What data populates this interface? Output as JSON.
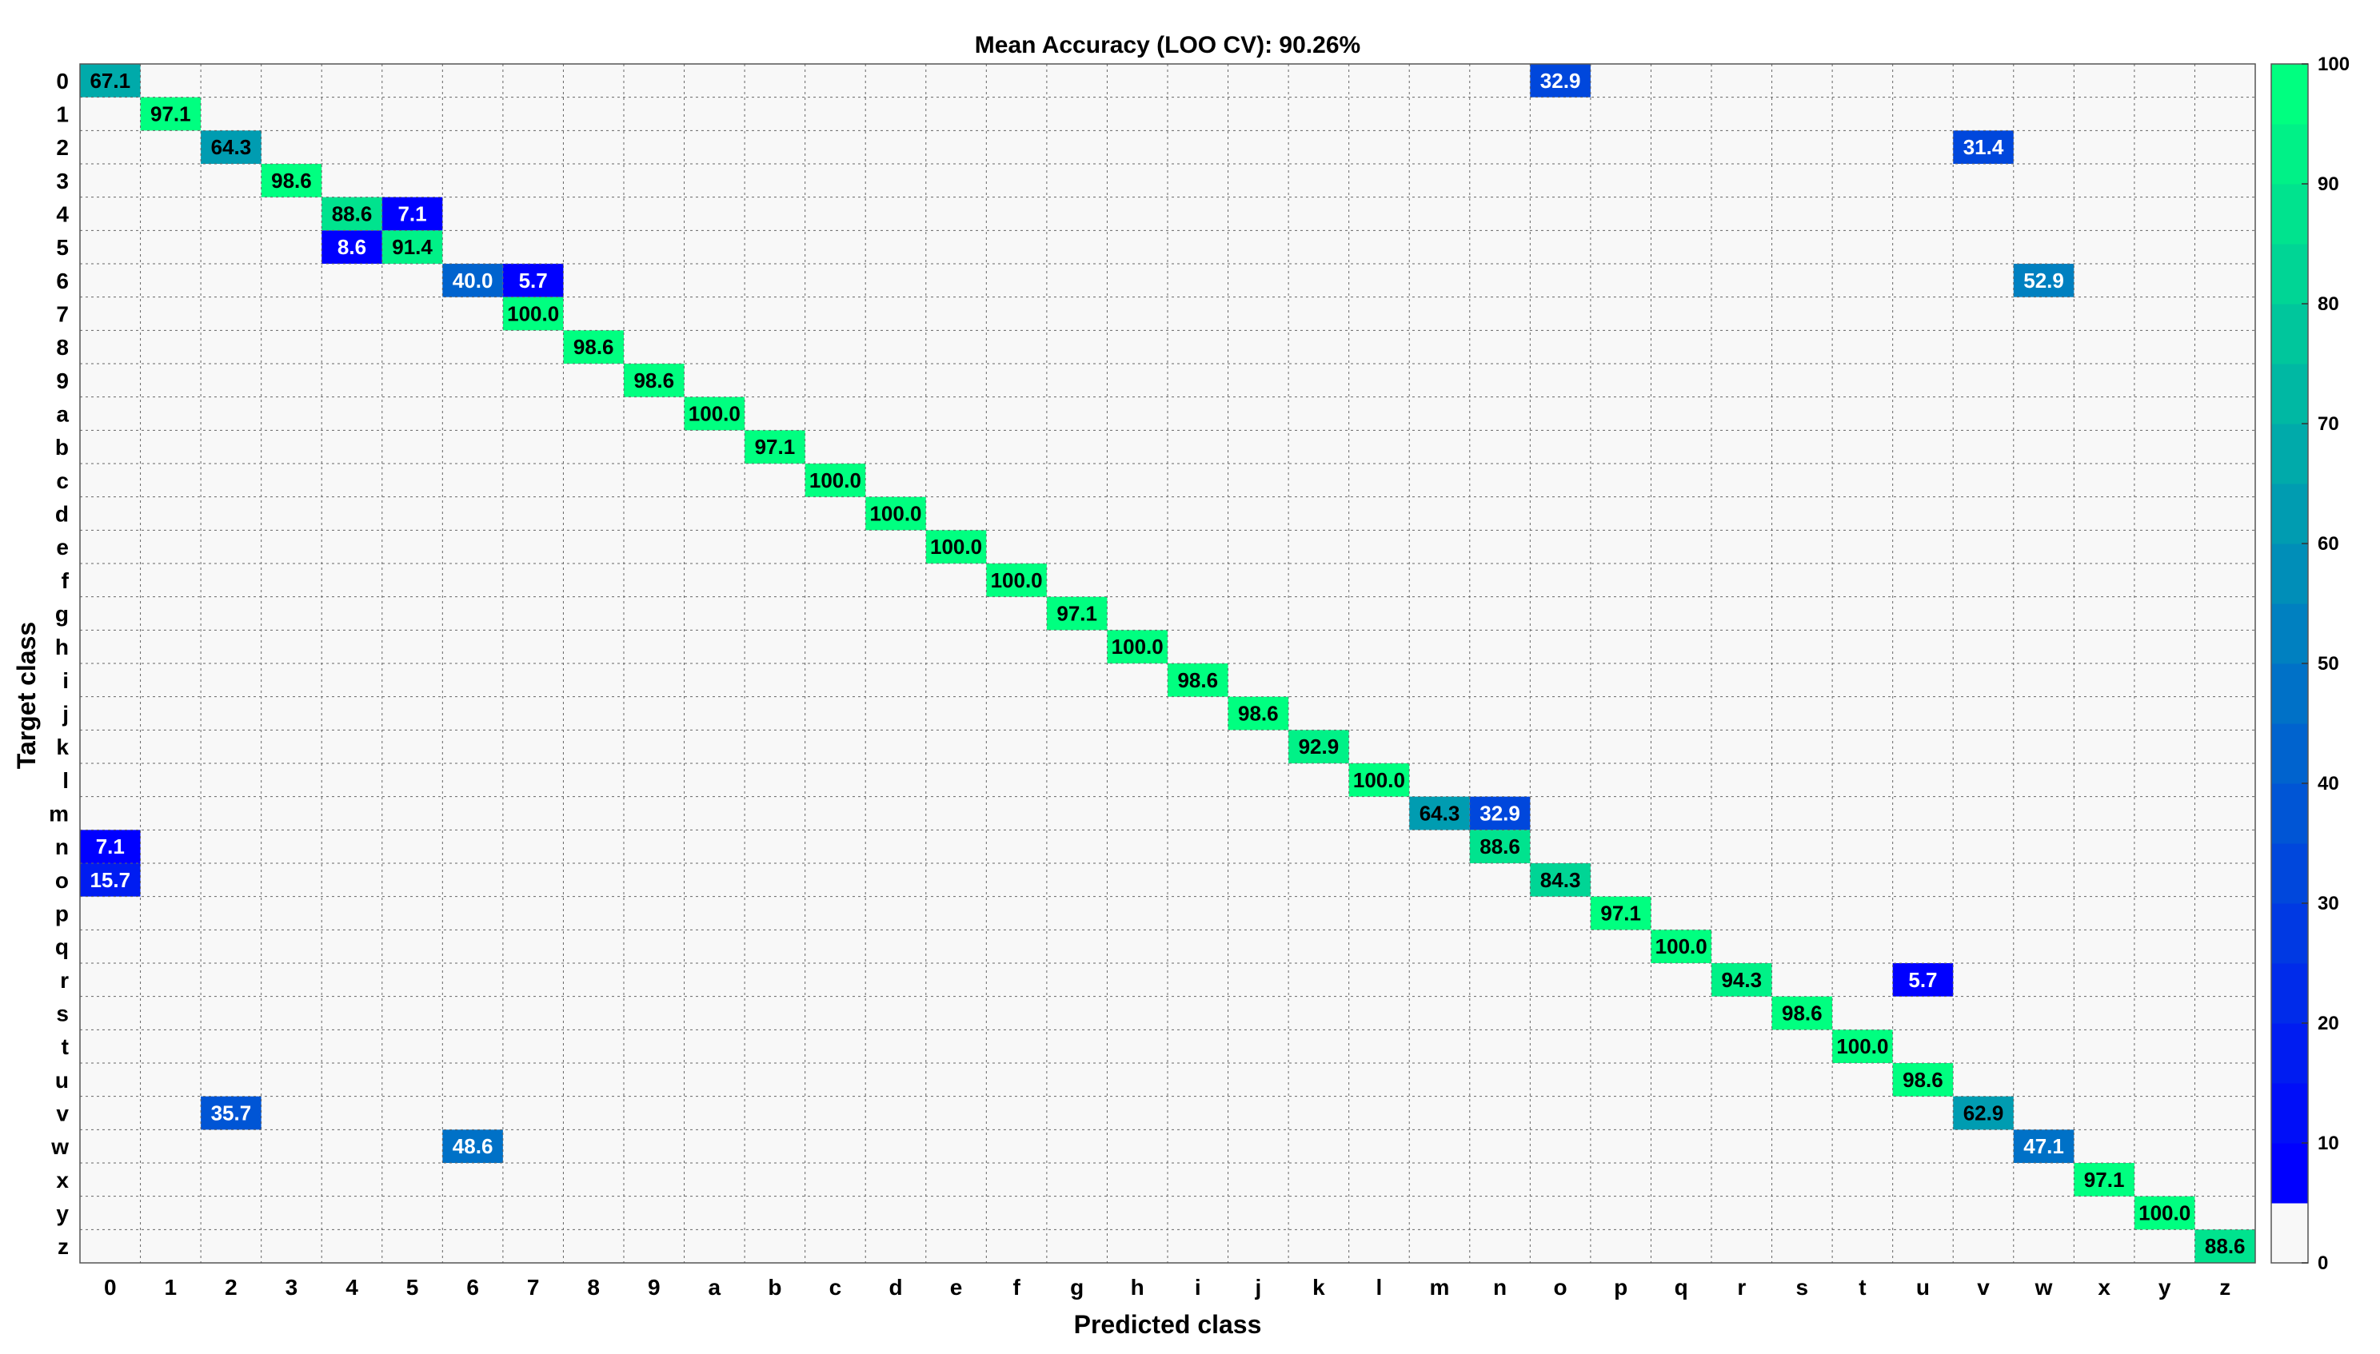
{
  "chart_data": {
    "type": "heatmap",
    "title": "Mean Accuracy (LOO CV): 90.26%",
    "xlabel": "Predicted class",
    "ylabel": "Target class",
    "classes": [
      "0",
      "1",
      "2",
      "3",
      "4",
      "5",
      "6",
      "7",
      "8",
      "9",
      "a",
      "b",
      "c",
      "d",
      "e",
      "f",
      "g",
      "h",
      "i",
      "j",
      "k",
      "l",
      "m",
      "n",
      "o",
      "p",
      "q",
      "r",
      "s",
      "t",
      "u",
      "v",
      "w",
      "x",
      "y",
      "z"
    ],
    "cells": [
      {
        "target": "0",
        "predicted": "0",
        "value": 67.1
      },
      {
        "target": "0",
        "predicted": "o",
        "value": 32.9
      },
      {
        "target": "1",
        "predicted": "1",
        "value": 97.1
      },
      {
        "target": "2",
        "predicted": "2",
        "value": 64.3
      },
      {
        "target": "2",
        "predicted": "v",
        "value": 31.4
      },
      {
        "target": "3",
        "predicted": "3",
        "value": 98.6
      },
      {
        "target": "4",
        "predicted": "4",
        "value": 88.6
      },
      {
        "target": "4",
        "predicted": "5",
        "value": 7.1
      },
      {
        "target": "5",
        "predicted": "4",
        "value": 8.6
      },
      {
        "target": "5",
        "predicted": "5",
        "value": 91.4
      },
      {
        "target": "6",
        "predicted": "6",
        "value": 40.0
      },
      {
        "target": "6",
        "predicted": "7",
        "value": 5.7
      },
      {
        "target": "6",
        "predicted": "w",
        "value": 52.9
      },
      {
        "target": "7",
        "predicted": "7",
        "value": 100.0
      },
      {
        "target": "8",
        "predicted": "8",
        "value": 98.6
      },
      {
        "target": "9",
        "predicted": "9",
        "value": 98.6
      },
      {
        "target": "a",
        "predicted": "a",
        "value": 100.0
      },
      {
        "target": "b",
        "predicted": "b",
        "value": 97.1
      },
      {
        "target": "c",
        "predicted": "c",
        "value": 100.0
      },
      {
        "target": "d",
        "predicted": "d",
        "value": 100.0
      },
      {
        "target": "e",
        "predicted": "e",
        "value": 100.0
      },
      {
        "target": "f",
        "predicted": "f",
        "value": 100.0
      },
      {
        "target": "g",
        "predicted": "g",
        "value": 97.1
      },
      {
        "target": "h",
        "predicted": "h",
        "value": 100.0
      },
      {
        "target": "i",
        "predicted": "i",
        "value": 98.6
      },
      {
        "target": "j",
        "predicted": "j",
        "value": 98.6
      },
      {
        "target": "k",
        "predicted": "k",
        "value": 92.9
      },
      {
        "target": "l",
        "predicted": "l",
        "value": 100.0
      },
      {
        "target": "m",
        "predicted": "m",
        "value": 64.3
      },
      {
        "target": "m",
        "predicted": "n",
        "value": 32.9
      },
      {
        "target": "n",
        "predicted": "0",
        "value": 7.1
      },
      {
        "target": "n",
        "predicted": "n",
        "value": 88.6
      },
      {
        "target": "o",
        "predicted": "0",
        "value": 15.7
      },
      {
        "target": "o",
        "predicted": "o",
        "value": 84.3
      },
      {
        "target": "p",
        "predicted": "p",
        "value": 97.1
      },
      {
        "target": "q",
        "predicted": "q",
        "value": 100.0
      },
      {
        "target": "r",
        "predicted": "r",
        "value": 94.3
      },
      {
        "target": "r",
        "predicted": "u",
        "value": 5.7
      },
      {
        "target": "s",
        "predicted": "s",
        "value": 98.6
      },
      {
        "target": "t",
        "predicted": "t",
        "value": 100.0
      },
      {
        "target": "u",
        "predicted": "u",
        "value": 98.6
      },
      {
        "target": "v",
        "predicted": "2",
        "value": 35.7
      },
      {
        "target": "v",
        "predicted": "v",
        "value": 62.9
      },
      {
        "target": "w",
        "predicted": "6",
        "value": 48.6
      },
      {
        "target": "w",
        "predicted": "w",
        "value": 47.1
      },
      {
        "target": "x",
        "predicted": "x",
        "value": 97.1
      },
      {
        "target": "y",
        "predicted": "y",
        "value": 100.0
      },
      {
        "target": "z",
        "predicted": "z",
        "value": 88.6
      }
    ],
    "colorbar": {
      "range": [
        0,
        100
      ],
      "ticks": [
        "0",
        "10",
        "20",
        "30",
        "40",
        "50",
        "60",
        "70",
        "80",
        "90",
        "100"
      ],
      "low_color": "#f8f8f8",
      "start_color": "#0000ff",
      "end_color": "#00ff80"
    },
    "grid": true,
    "cell_text_dark": "#000000",
    "cell_text_light": "#ffffff"
  }
}
